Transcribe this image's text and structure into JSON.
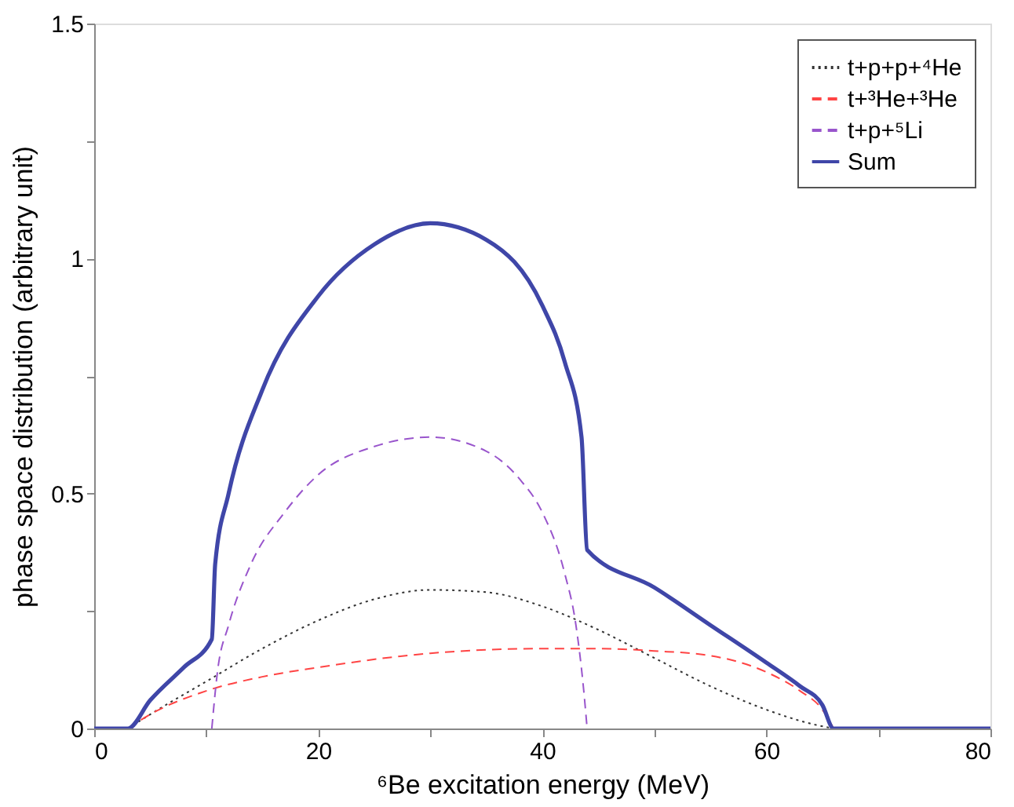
{
  "chart_data": {
    "type": "line",
    "xlabel": "⁶Be excitation energy (MeV)",
    "ylabel": "phase space distribution (arbitrary unit)",
    "xlim": [
      0,
      80
    ],
    "xticks": [
      0,
      {
        "value": 10,
        "label": null
      },
      20,
      {
        "value": 30,
        "label": null
      },
      40,
      {
        "value": 50,
        "label": null
      },
      60,
      {
        "value": 70,
        "label": null
      },
      80
    ],
    "ylim": [
      0,
      1.5
    ],
    "yticks": [
      0,
      {
        "value": 0.25,
        "label": null
      },
      0.5,
      {
        "value": 0.75,
        "label": null
      },
      1,
      {
        "value": 1.25,
        "label": null
      },
      1.5
    ],
    "grid": false,
    "legend": "top right",
    "marker": "none",
    "series": [
      {
        "name": "t+p+p+⁴He",
        "color": "#333333",
        "line_style": "dotted",
        "x": [
          3,
          5,
          10,
          15,
          20,
          25,
          30,
          35,
          40,
          45,
          50,
          55,
          60,
          64,
          66
        ],
        "values": [
          0,
          0.03,
          0.1,
          0.17,
          0.23,
          0.275,
          0.295,
          0.29,
          0.26,
          0.21,
          0.15,
          0.09,
          0.04,
          0.01,
          0
        ]
      },
      {
        "name": "t+³He+³He",
        "color": "#ff4444",
        "line_style": "dashed",
        "x": [
          3,
          5,
          10,
          15,
          20,
          30,
          40,
          45,
          50,
          55,
          60,
          63,
          65,
          66
        ],
        "values": [
          0,
          0.03,
          0.08,
          0.11,
          0.13,
          0.16,
          0.17,
          0.17,
          0.165,
          0.155,
          0.12,
          0.08,
          0.04,
          0
        ]
      },
      {
        "name": "t+p+⁵Li",
        "color": "#9955cc",
        "line_style": "dashed",
        "x": [
          10.5,
          11,
          12,
          14,
          17,
          20,
          25,
          30,
          35,
          38,
          40,
          42,
          43,
          43.7,
          44
        ],
        "values": [
          0,
          0.12,
          0.22,
          0.35,
          0.46,
          0.54,
          0.6,
          0.62,
          0.59,
          0.53,
          0.46,
          0.33,
          0.22,
          0.08,
          0
        ]
      },
      {
        "name": "Sum",
        "color": "#3f46a8",
        "line_style": "solid",
        "x": [
          0,
          3,
          5,
          8,
          10.5,
          10.8,
          12,
          15,
          20,
          25,
          30,
          35,
          40,
          42,
          43.5,
          44,
          50,
          55,
          60,
          63,
          65,
          66,
          80
        ],
        "values": [
          0,
          0,
          0.06,
          0.13,
          0.19,
          0.35,
          0.5,
          0.72,
          0.92,
          1.03,
          1.075,
          1.04,
          0.9,
          0.78,
          0.62,
          0.38,
          0.3,
          0.22,
          0.14,
          0.09,
          0.05,
          0,
          0
        ]
      }
    ]
  }
}
